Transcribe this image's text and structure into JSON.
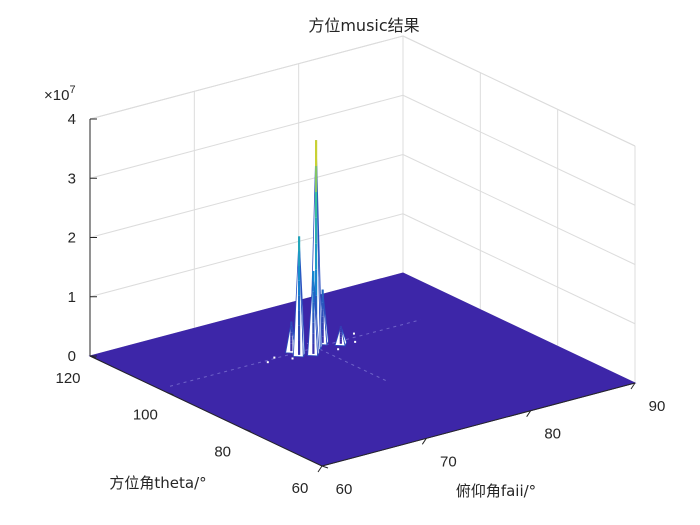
{
  "chart_data": {
    "type": "surface",
    "title": "方位music结果",
    "xlabel": "俯仰角faii/°",
    "ylabel": "方位角theta/°",
    "zlabel": "",
    "x_ticks": [
      60,
      70,
      80,
      90
    ],
    "y_ticks": [
      60,
      80,
      100,
      120
    ],
    "z_ticks": [
      0,
      1,
      2,
      3,
      4
    ],
    "z_exponent_label": "×10",
    "z_exponent": "7",
    "xlim": [
      60,
      90
    ],
    "ylim": [
      60,
      120
    ],
    "zlim": [
      0,
      4
    ],
    "z_scale": 10000000,
    "grid": true,
    "colormap": "parula",
    "base_color": "#3d26a8",
    "peak": {
      "x": 75,
      "y": 102,
      "z": 3.5
    },
    "secondary_peaks": [
      {
        "x": 73,
        "y": 101,
        "z": 2.0
      },
      {
        "x": 74,
        "y": 100,
        "z": 1.4
      },
      {
        "x": 76,
        "y": 103,
        "z": 0.9
      },
      {
        "x": 73,
        "y": 103,
        "z": 0.5
      },
      {
        "x": 77,
        "y": 101,
        "z": 0.3
      }
    ]
  }
}
